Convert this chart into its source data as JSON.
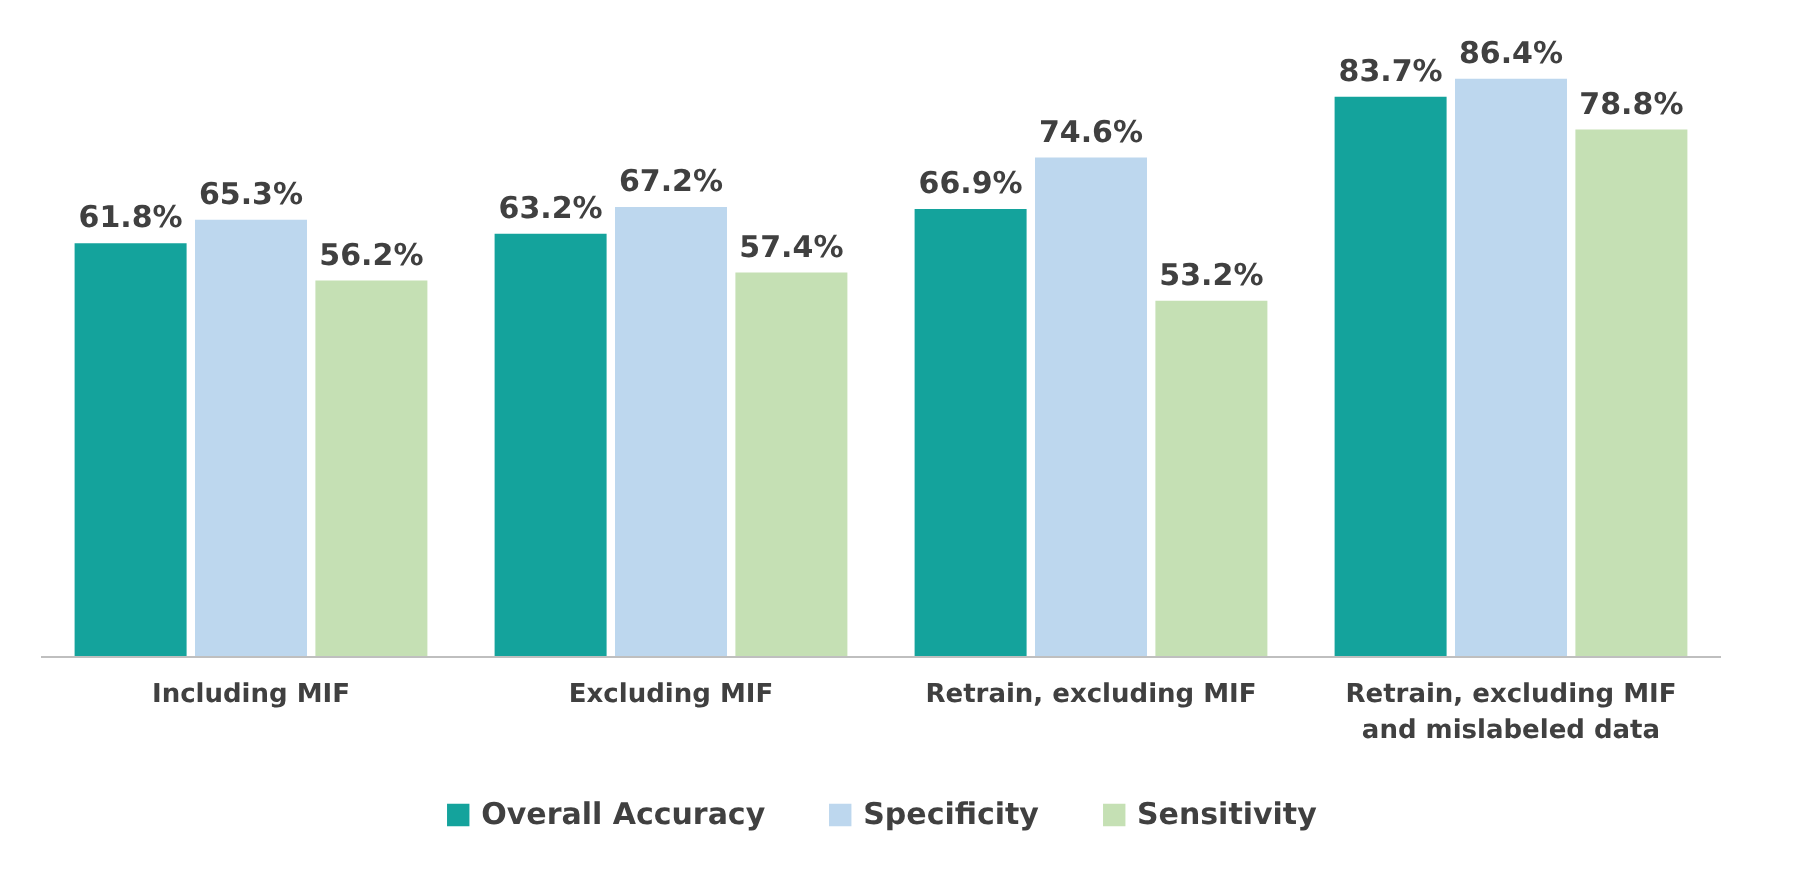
{
  "chart_data": {
    "type": "bar",
    "categories": [
      "Including MIF",
      "Excluding MIF",
      "Retrain, excluding MIF",
      "Retrain, excluding MIF and mislabeled data"
    ],
    "series": [
      {
        "name": "Overall Accuracy",
        "color": "#14a39c",
        "values": [
          61.8,
          63.2,
          66.9,
          83.7
        ],
        "value_labels": [
          "61.8%",
          "63.2%",
          "66.9%",
          "83.7%"
        ]
      },
      {
        "name": "Specificity",
        "color": "#bdd7ee",
        "values": [
          65.3,
          67.2,
          74.6,
          86.4
        ],
        "value_labels": [
          "65.3%",
          "67.2%",
          "74.6%",
          "86.4%"
        ]
      },
      {
        "name": "Sensitivity",
        "color": "#c5e0b4",
        "values": [
          56.2,
          57.4,
          53.2,
          78.8
        ],
        "value_labels": [
          "56.2%",
          "57.4%",
          "53.2%",
          "78.8%"
        ]
      }
    ],
    "legend": "bottom"
  }
}
